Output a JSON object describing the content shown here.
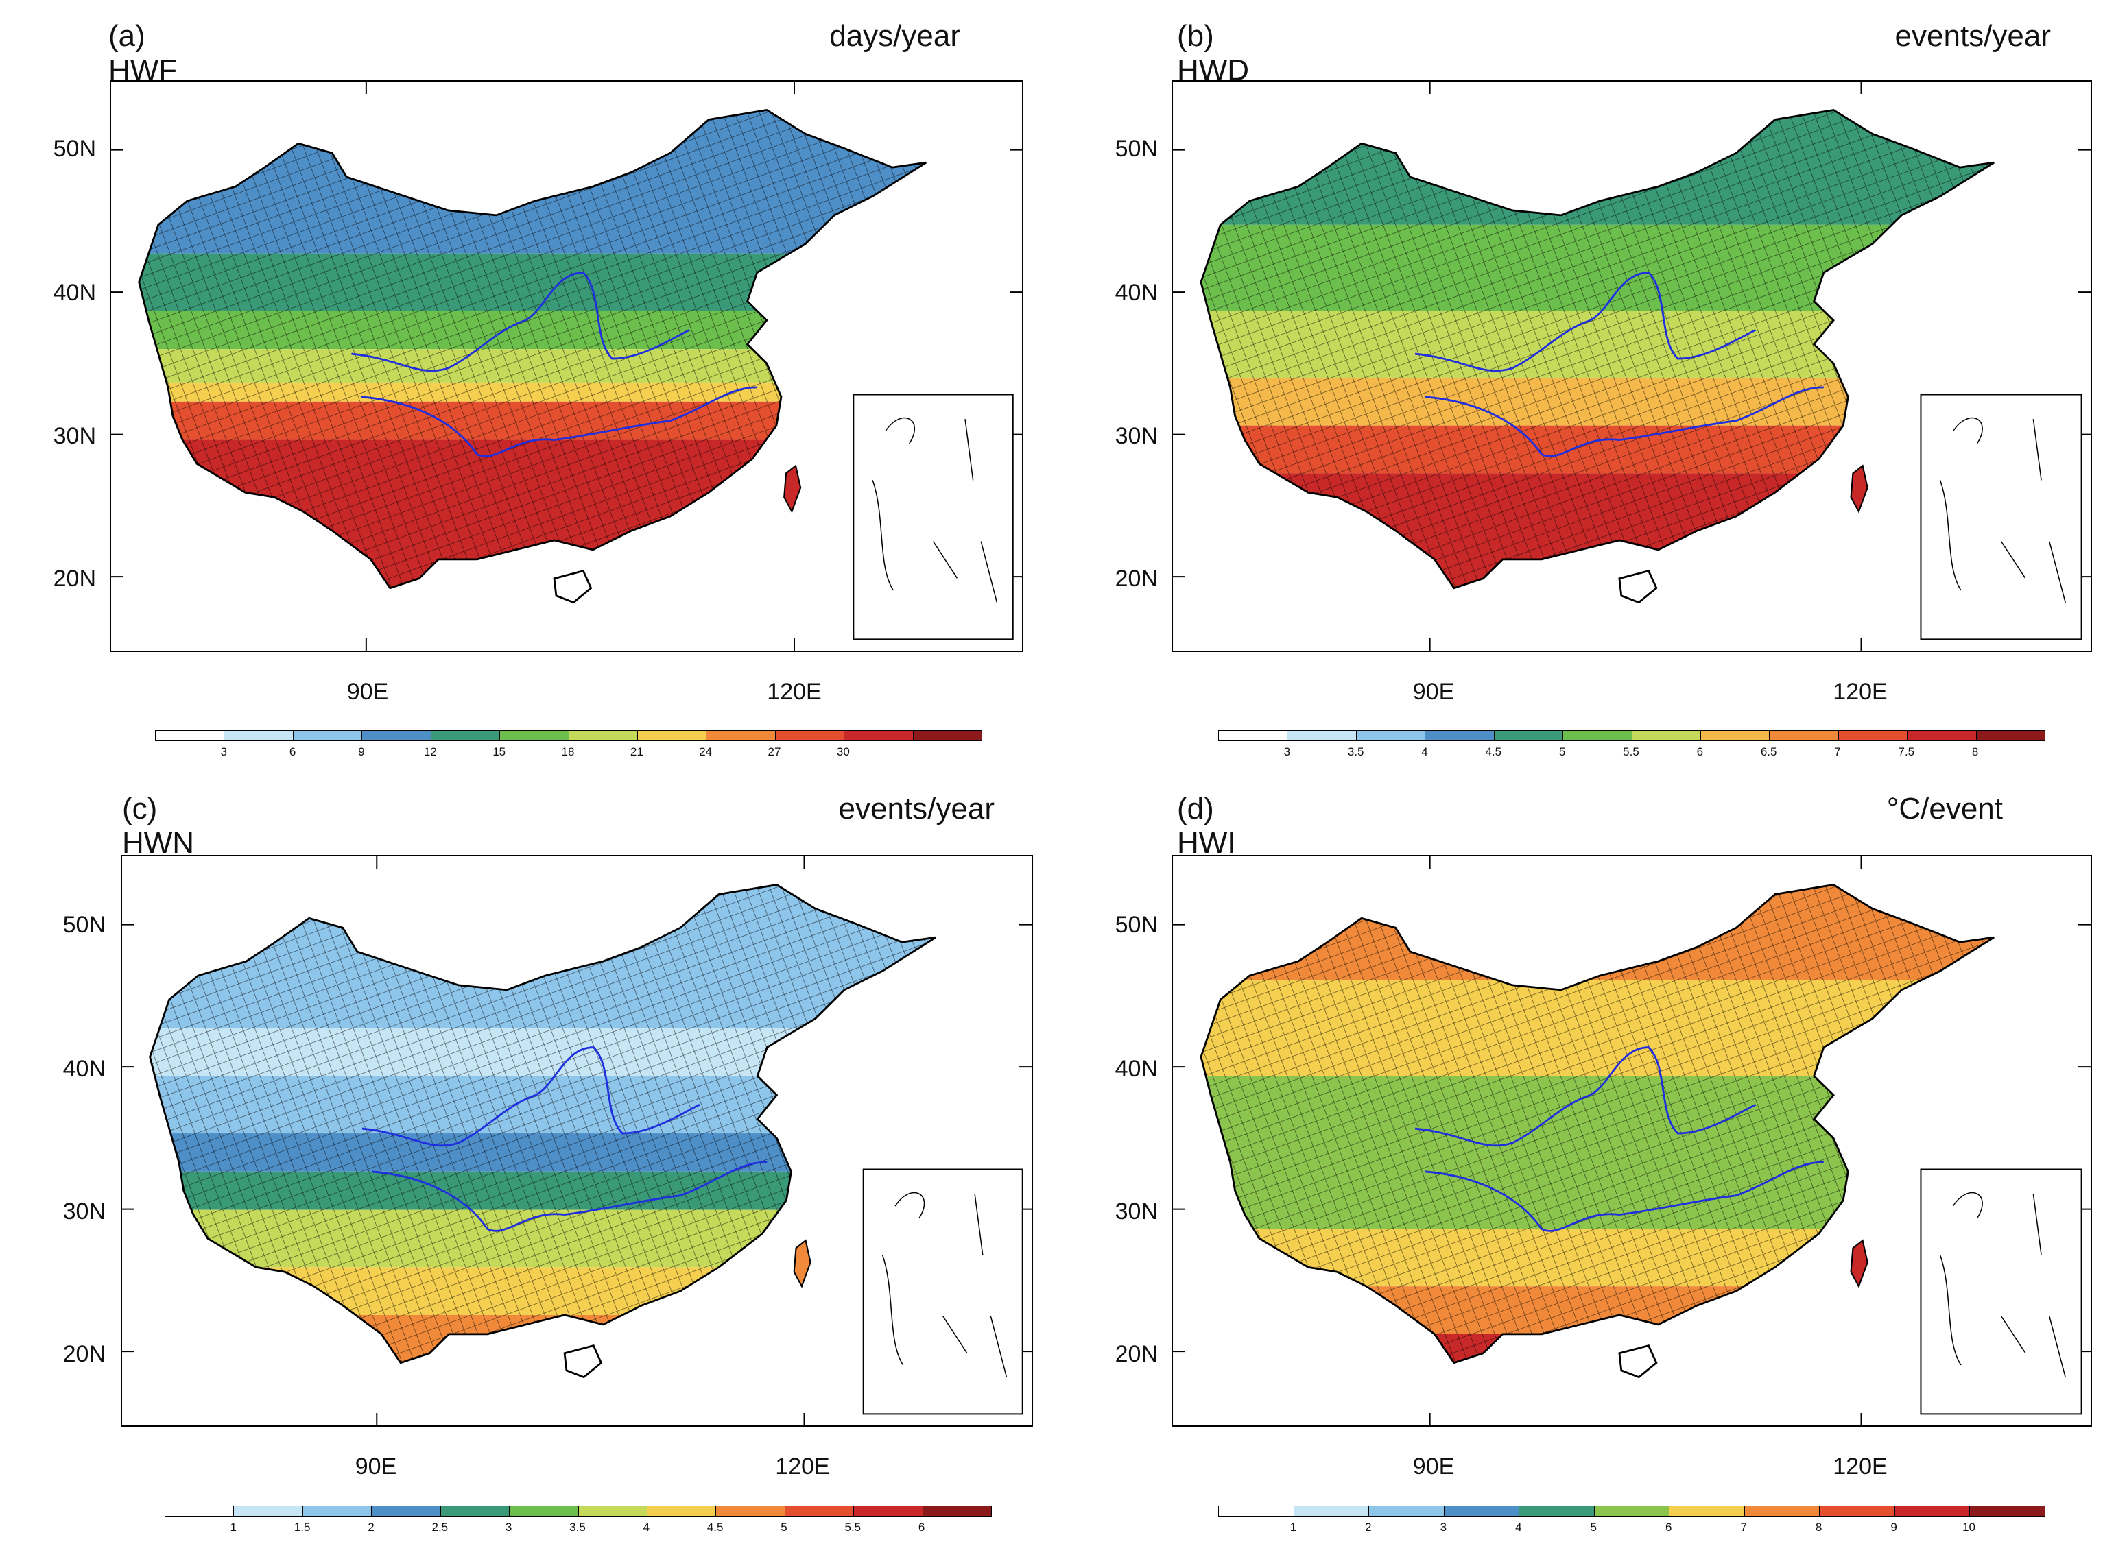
{
  "axes": {
    "lat_labels": [
      "50N",
      "40N",
      "30N",
      "20N"
    ],
    "lon_labels": [
      "90E",
      "120E"
    ]
  },
  "panels": [
    {
      "id": "a",
      "title": "(a) HWF",
      "unit": "days/year",
      "colorbar": {
        "ticks": [
          "3",
          "6",
          "9",
          "12",
          "15",
          "18",
          "21",
          "24",
          "27",
          "30"
        ],
        "colors": [
          "#ffffff",
          "#c6e6f6",
          "#8ec5ea",
          "#4f8fc8",
          "#3a9a78",
          "#6cbf4c",
          "#c5d95a",
          "#f5cf4f",
          "#f08a3a",
          "#e4502f",
          "#c82828",
          "#8c1a1a"
        ]
      },
      "fill_scheme": "hwf"
    },
    {
      "id": "b",
      "title": "(b) HWD",
      "unit": "events/year",
      "colorbar": {
        "ticks": [
          "3",
          "3.5",
          "4",
          "4.5",
          "5",
          "5.5",
          "6",
          "6.5",
          "7",
          "7.5",
          "8"
        ],
        "colors": [
          "#ffffff",
          "#c6e6f6",
          "#8ec5ea",
          "#4f8fc8",
          "#3a9a78",
          "#6cbf4c",
          "#c5d95a",
          "#f5b84a",
          "#f08a3a",
          "#e4502f",
          "#c82828",
          "#8c1a1a"
        ]
      },
      "fill_scheme": "hwd"
    },
    {
      "id": "c",
      "title": "(c) HWN",
      "unit": "events/year",
      "colorbar": {
        "ticks": [
          "1",
          "1.5",
          "2",
          "2.5",
          "3",
          "3.5",
          "4",
          "4.5",
          "5",
          "5.5",
          "6"
        ],
        "colors": [
          "#ffffff",
          "#c6e6f6",
          "#8ec5ea",
          "#4f8fc8",
          "#3a9a78",
          "#6cbf4c",
          "#c5d95a",
          "#f5cf4f",
          "#f08a3a",
          "#e4502f",
          "#c82828",
          "#8c1a1a"
        ]
      },
      "fill_scheme": "hwn"
    },
    {
      "id": "d",
      "title": "(d) HWI",
      "unit": "°C/event",
      "colorbar": {
        "ticks": [
          "1",
          "2",
          "3",
          "4",
          "5",
          "6",
          "7",
          "8",
          "9",
          "10"
        ],
        "colors": [
          "#ffffff",
          "#c6e6f6",
          "#8ec5ea",
          "#4f8fc8",
          "#3a9a78",
          "#8cc54e",
          "#f5cf4f",
          "#f08a3a",
          "#e4502f",
          "#c82828",
          "#8c1a1a"
        ]
      },
      "fill_scheme": "hwi"
    }
  ]
}
